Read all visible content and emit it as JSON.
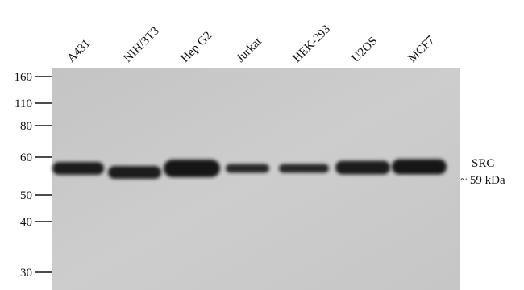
{
  "lanes": [
    "A431",
    "NIH/3T3",
    "Hep G2",
    "Jurkat",
    "HEK-293",
    "U2OS",
    "MCF7"
  ],
  "markers": [
    "160",
    "110",
    "80",
    "60",
    "50",
    "40",
    "30"
  ],
  "band": {
    "name": "SRC",
    "size": "~ 59 kDa"
  }
}
